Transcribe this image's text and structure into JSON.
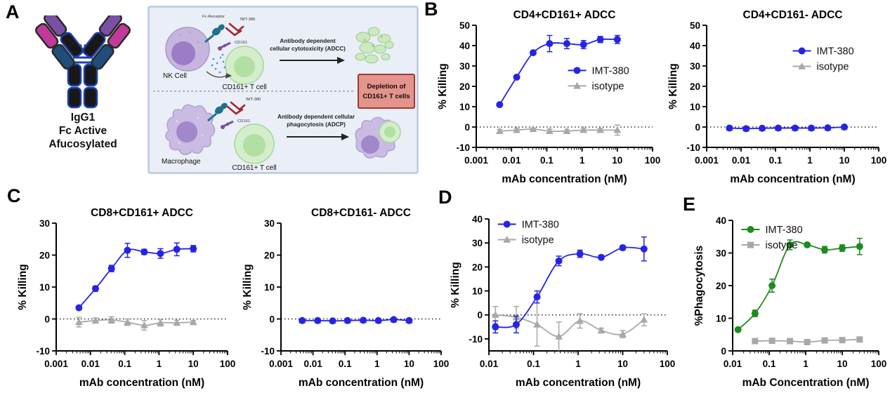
{
  "figure": {
    "panels": {
      "A": "A",
      "B": "B",
      "C": "C",
      "D": "D",
      "E": "E"
    }
  },
  "colors": {
    "imt380_blue": "#2424e6",
    "imt380_green": "#1f8a1f",
    "isotype_gray": "#a8a8a8",
    "diagram_bg": "#e9eef7",
    "diagram_border": "#b9c9e6",
    "depletion_fill": "#e2948d",
    "depletion_border": "#9c3a32"
  },
  "panel_a": {
    "antibody_caption_lines": [
      "IgG1",
      "Fc Active",
      "Afucosylated"
    ],
    "diagram": {
      "top": {
        "cell_label": "NK Cell",
        "receptor_label": "Fc-Receptor",
        "antibody_label": "IMT-380",
        "cd161_label": "CD161",
        "target_label": "CD161+ T cell",
        "process_line1": "Antibody dependent",
        "process_line2": "cellular cytotoxicity (ADCC)"
      },
      "bottom": {
        "cell_label": "Macrophage",
        "antibody_label": "IMT-380",
        "cd161_label": "CD161",
        "target_label": "CD161+ T cell",
        "process_line1": "Antibody dependent cellular",
        "process_line2": "phagocytosis (ADCP)"
      },
      "depletion_line1": "Depletion of",
      "depletion_line2": "CD161+ T cells"
    }
  },
  "chart_data": [
    {
      "type": "scatter",
      "panel": "B",
      "title": "CD4+CD161+ ADCC",
      "xlabel": "mAb concentration (nM)",
      "ylabel": "% Killing",
      "xlim": [
        0.001,
        100
      ],
      "ylim": [
        -10,
        50
      ],
      "yticks": [
        -10,
        0,
        10,
        20,
        30,
        40,
        50
      ],
      "xticks": [
        {
          "v": 0.001,
          "label": "0.001"
        },
        {
          "v": 0.01,
          "label": "0.01"
        },
        {
          "v": 0.1,
          "label": "0.1"
        },
        {
          "v": 1,
          "label": "1"
        },
        {
          "v": 10,
          "label": "10"
        },
        {
          "v": 100,
          "label": "100"
        }
      ],
      "zeroline": true,
      "legend": {
        "show": true,
        "fx": 0.52,
        "fy": 0.37
      },
      "series": [
        {
          "name": "IMT-380",
          "color": "#2424e6",
          "marker": "circle",
          "x": [
            0.0046,
            0.014,
            0.041,
            0.12,
            0.37,
            1.1,
            3.3,
            10
          ],
          "y": [
            11,
            24.5,
            36.5,
            41,
            41,
            40.5,
            43,
            43
          ],
          "err": [
            0.8,
            0.8,
            0.8,
            4,
            2.5,
            2,
            1.5,
            2
          ]
        },
        {
          "name": "isotype",
          "color": "#a8a8a8",
          "marker": "triangle",
          "x": [
            0.0046,
            0.014,
            0.041,
            0.12,
            0.37,
            1.1,
            3.3,
            10
          ],
          "y": [
            -2,
            -1.5,
            -1,
            -2,
            -2,
            -1.5,
            -1.5,
            -1.5
          ],
          "err": [
            0.8,
            0.8,
            0.5,
            1,
            0.8,
            0.8,
            0.8,
            2.5
          ]
        }
      ]
    },
    {
      "type": "scatter",
      "panel": "B",
      "title": "CD4+CD161- ADCC",
      "xlabel": "mAb concentration (nM)",
      "ylabel": "% Killing",
      "xlim": [
        0.001,
        100
      ],
      "ylim": [
        -10,
        50
      ],
      "yticks": [
        -10,
        0,
        10,
        20,
        30,
        40,
        50
      ],
      "xticks": [
        {
          "v": 0.001,
          "label": "0.001"
        },
        {
          "v": 0.01,
          "label": "0.01"
        },
        {
          "v": 0.1,
          "label": "0.1"
        },
        {
          "v": 1,
          "label": "1"
        },
        {
          "v": 10,
          "label": "10"
        },
        {
          "v": 100,
          "label": "100"
        }
      ],
      "zeroline": true,
      "legend": {
        "show": true,
        "fx": 0.5,
        "fy": 0.21
      },
      "series": [
        {
          "name": "IMT-380",
          "color": "#2424e6",
          "marker": "circle",
          "x": [
            0.0046,
            0.014,
            0.041,
            0.12,
            0.37,
            1.1,
            3.3,
            10
          ],
          "y": [
            -0.5,
            -0.8,
            -0.6,
            -0.5,
            -0.5,
            -0.5,
            -0.4,
            0
          ],
          "err": [
            0.3,
            0.3,
            0.3,
            0.3,
            0.3,
            0.3,
            0.3,
            0.3
          ]
        },
        {
          "name": "isotype",
          "color": "#a8a8a8",
          "marker": "triangle",
          "x": [
            0.0046,
            0.014,
            0.041,
            0.12,
            0.37,
            1.1,
            3.3,
            10
          ],
          "y": [
            -0.5,
            -0.8,
            -0.6,
            -0.5,
            -0.5,
            -0.5,
            -0.4,
            0
          ],
          "err": [
            0.3,
            0.3,
            0.3,
            0.3,
            0.3,
            0.3,
            0.3,
            0.3
          ]
        }
      ]
    },
    {
      "type": "scatter",
      "panel": "C",
      "title": "CD8+CD161+ ADCC",
      "xlabel": "mAb concentration (nM)",
      "ylabel": "% Killing",
      "xlim": [
        0.001,
        100
      ],
      "ylim": [
        -10,
        30
      ],
      "yticks": [
        -10,
        0,
        10,
        20,
        30
      ],
      "xticks": [
        {
          "v": 0.001,
          "label": "0.001"
        },
        {
          "v": 0.01,
          "label": "0.01"
        },
        {
          "v": 0.1,
          "label": "0.1"
        },
        {
          "v": 1,
          "label": "1"
        },
        {
          "v": 10,
          "label": "10"
        },
        {
          "v": 100,
          "label": "100"
        }
      ],
      "zeroline": true,
      "legend": {
        "show": false,
        "fx": 0,
        "fy": 0
      },
      "series": [
        {
          "name": "IMT-380",
          "color": "#2424e6",
          "marker": "circle",
          "x": [
            0.0046,
            0.014,
            0.041,
            0.12,
            0.37,
            1.1,
            3.3,
            10
          ],
          "y": [
            3.5,
            9.5,
            15.8,
            21.5,
            21,
            20.5,
            21.8,
            22
          ],
          "err": [
            0.4,
            0.8,
            1,
            2.2,
            0.8,
            1.5,
            2,
            1
          ]
        },
        {
          "name": "isotype",
          "color": "#a8a8a8",
          "marker": "triangle",
          "x": [
            0.0046,
            0.014,
            0.041,
            0.12,
            0.37,
            1.1,
            3.3,
            10
          ],
          "y": [
            -1,
            -0.5,
            -0.3,
            -1,
            -2,
            -1.2,
            -1.2,
            -1
          ],
          "err": [
            1.5,
            0.8,
            1,
            1,
            1.5,
            1,
            0.8,
            0.5
          ]
        }
      ]
    },
    {
      "type": "scatter",
      "panel": "C",
      "title": "CD8+CD161- ADCC",
      "xlabel": "mAb concentration (nM)",
      "ylabel": "% Killing",
      "xlim": [
        0.001,
        100
      ],
      "ylim": [
        -10,
        30
      ],
      "yticks": [
        -10,
        0,
        10,
        20,
        30
      ],
      "xticks": [
        {
          "v": 0.001,
          "label": "0.001"
        },
        {
          "v": 0.01,
          "label": "0.01"
        },
        {
          "v": 0.1,
          "label": "0.1"
        },
        {
          "v": 1,
          "label": "1"
        },
        {
          "v": 10,
          "label": "10"
        },
        {
          "v": 100,
          "label": "100"
        }
      ],
      "zeroline": true,
      "legend": {
        "show": false,
        "fx": 0,
        "fy": 0
      },
      "series": [
        {
          "name": "IMT-380",
          "color": "#2424e6",
          "marker": "circle",
          "x": [
            0.0046,
            0.014,
            0.041,
            0.12,
            0.37,
            1.1,
            3.3,
            10
          ],
          "y": [
            -0.5,
            -0.5,
            -0.6,
            -0.5,
            -0.4,
            -0.5,
            -0.2,
            -0.5
          ],
          "err": [
            0.3,
            0.3,
            0.3,
            0.3,
            0.3,
            0.3,
            0.3,
            0.3
          ]
        },
        {
          "name": "isotype",
          "color": "#a8a8a8",
          "marker": "triangle",
          "x": [
            0.0046,
            0.014,
            0.041,
            0.12,
            0.37,
            1.1,
            3.3,
            10
          ],
          "y": [
            -0.5,
            -0.5,
            -0.6,
            -0.5,
            -0.4,
            -0.5,
            -0.2,
            -0.5
          ],
          "err": [
            0.3,
            0.3,
            0.3,
            0.3,
            0.3,
            0.3,
            0.3,
            0.3
          ]
        }
      ]
    },
    {
      "type": "scatter",
      "panel": "D",
      "title": "",
      "xlabel": "mAb concentration (nM)",
      "ylabel": "% Killing",
      "xlim": [
        0.01,
        100
      ],
      "ylim": [
        -15,
        40
      ],
      "yticks": [
        -10,
        0,
        10,
        20,
        30,
        40
      ],
      "xticks": [
        {
          "v": 0.01,
          "label": "0.01"
        },
        {
          "v": 0.1,
          "label": "0.1"
        },
        {
          "v": 1,
          "label": "1"
        },
        {
          "v": 10,
          "label": "10"
        },
        {
          "v": 100,
          "label": "100"
        }
      ],
      "zeroline": true,
      "legend": {
        "show": true,
        "fx": 0.05,
        "fy": 0.04
      },
      "series": [
        {
          "name": "IMT-380",
          "color": "#2424e6",
          "marker": "circle",
          "x": [
            0.014,
            0.041,
            0.12,
            0.37,
            1.1,
            3.3,
            10,
            30
          ],
          "y": [
            -5,
            -4,
            7.5,
            22.5,
            25.5,
            24,
            28,
            27.5
          ],
          "err": [
            2.5,
            3.5,
            2.5,
            2,
            1.5,
            0.8,
            1,
            5
          ]
        },
        {
          "name": "isotype",
          "color": "#a8a8a8",
          "marker": "triangle",
          "x": [
            0.014,
            0.041,
            0.12,
            0.37,
            1.1,
            3.3,
            10,
            30
          ],
          "y": [
            0,
            -1,
            -4,
            -9,
            -2.5,
            -6.5,
            -8,
            -2
          ],
          "err": [
            3.5,
            4.5,
            9,
            6,
            3,
            1,
            1.5,
            2.5
          ]
        }
      ]
    },
    {
      "type": "scatter",
      "panel": "E",
      "title": "",
      "xlabel": "mAb Concentration (nM)",
      "ylabel": "%Phagocytosis",
      "xlim": [
        0.01,
        100
      ],
      "ylim": [
        0,
        40
      ],
      "yticks": [
        0,
        10,
        20,
        30,
        40
      ],
      "xticks": [
        {
          "v": 0.01,
          "label": "0.01"
        },
        {
          "v": 0.1,
          "label": "0.1"
        },
        {
          "v": 1,
          "label": "1"
        },
        {
          "v": 10,
          "label": "10"
        },
        {
          "v": 100,
          "label": "100"
        }
      ],
      "zeroline": false,
      "legend": {
        "show": true,
        "fx": 0.06,
        "fy": 0.07
      },
      "series": [
        {
          "name": "IMT-380",
          "color": "#1f8a1f",
          "marker": "circle",
          "x": [
            0.014,
            0.041,
            0.12,
            0.37,
            1.1,
            3.3,
            10,
            30
          ],
          "y": [
            6.5,
            11.5,
            20,
            32.5,
            32.5,
            31,
            31.5,
            32
          ],
          "err": [
            0.4,
            1,
            2,
            1.5,
            0.4,
            1,
            1,
            2.5
          ]
        },
        {
          "name": "isotype",
          "color": "#a8a8a8",
          "marker": "square",
          "x": [
            0.041,
            0.12,
            0.37,
            1.1,
            3.3,
            10,
            30
          ],
          "y": [
            3,
            3.1,
            3,
            2.7,
            3.2,
            3.3,
            3.5
          ],
          "err": [
            0.3,
            0.3,
            0.3,
            0.3,
            0.3,
            0.3,
            0.4
          ]
        }
      ]
    }
  ]
}
